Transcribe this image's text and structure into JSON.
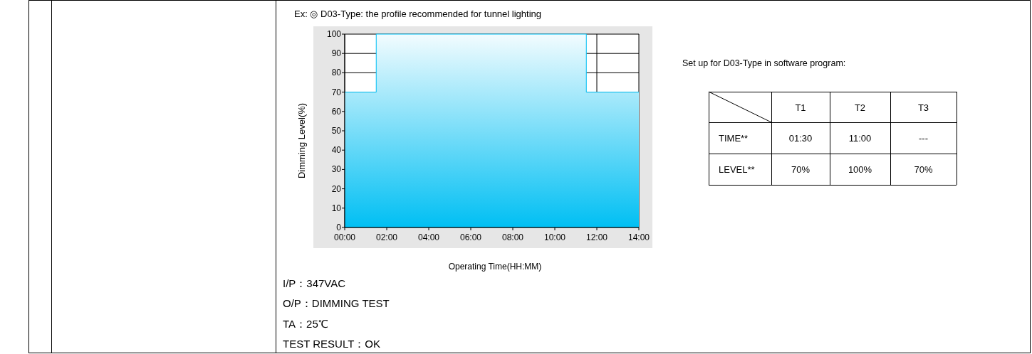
{
  "chart_data": [
    {
      "type": "step",
      "title": "Ex: ◎ D03-Type: the profile recommended for tunnel lighting",
      "xlabel": "Operating Time(HH:MM)",
      "ylabel": "Dimming Level(%)",
      "x": [
        0,
        1.5,
        11.5,
        14
      ],
      "series": [
        {
          "color": "#00bff3",
          "values": [
            70,
            100,
            70,
            70
          ]
        }
      ],
      "xlim": [
        0,
        14
      ],
      "ylim": [
        0,
        100
      ],
      "xticks": [
        {
          "value": 0,
          "label": "00:00"
        },
        {
          "value": 2,
          "label": "02:00"
        },
        {
          "value": 4,
          "label": "04:00"
        },
        {
          "value": 6,
          "label": "06:00"
        },
        {
          "value": 8,
          "label": "08:00"
        },
        {
          "value": 10,
          "label": "10:00"
        },
        {
          "value": 12,
          "label": "12:00"
        },
        {
          "value": 14,
          "label": "14:00"
        }
      ],
      "yticks": [
        0,
        10,
        20,
        30,
        40,
        50,
        60,
        70,
        80,
        90,
        100
      ],
      "grid": true,
      "annotations": [
        "I/P：347VAC",
        "O/P：DIMMING TEST",
        "TA：25℃",
        "TEST RESULT：OK"
      ]
    },
    {
      "type": "other",
      "title": "Set up for D03-Type in software program:",
      "annotations": [
        "T1",
        "T2",
        "T3",
        "TIME**",
        "01:30",
        "11:00",
        "---",
        "LEVEL**",
        "70%",
        "100%",
        "70%"
      ]
    }
  ]
}
